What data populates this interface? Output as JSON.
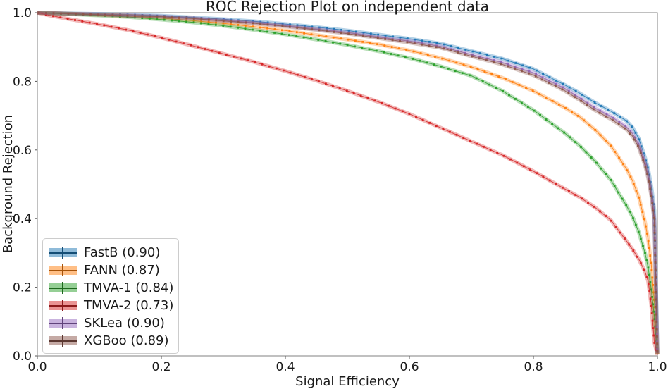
{
  "title": "ROC Rejection Plot on independent data",
  "axes": {
    "xlabel": "Signal Efficiency",
    "ylabel": "Background Rejection",
    "x_ticks": [
      "0.0",
      "0.2",
      "0.4",
      "0.6",
      "0.8",
      "1.0"
    ],
    "y_ticks": [
      "0.0",
      "0.2",
      "0.4",
      "0.6",
      "0.8",
      "1.0"
    ]
  },
  "legend": {
    "position": "lower left",
    "entries": [
      {
        "label": "FastB (0.90)",
        "color": "#1f77b4"
      },
      {
        "label": "FANN (0.87)",
        "color": "#ff7f0e"
      },
      {
        "label": "TMVA-1 (0.84)",
        "color": "#2ca02c"
      },
      {
        "label": "TMVA-2 (0.73)",
        "color": "#d62728"
      },
      {
        "label": "SKLea (0.90)",
        "color": "#9467bd"
      },
      {
        "label": "XGBoo (0.89)",
        "color": "#8c564b"
      }
    ]
  },
  "chart_data": {
    "type": "line",
    "title": "ROC Rejection Plot on independent data",
    "xlabel": "Signal Efficiency",
    "ylabel": "Background Rejection",
    "xlim": [
      0.0,
      1.0
    ],
    "ylim": [
      0.0,
      1.0
    ],
    "grid": false,
    "legend_position": "lower left",
    "style": "error-band lines with small square markers",
    "x": [
      0,
      0.02,
      0.05,
      0.1,
      0.15,
      0.2,
      0.25,
      0.3,
      0.35,
      0.4,
      0.45,
      0.5,
      0.55,
      0.6,
      0.65,
      0.7,
      0.75,
      0.8,
      0.85,
      0.875,
      0.9,
      0.925,
      0.95,
      0.96,
      0.97,
      0.98,
      0.985,
      0.99,
      0.995,
      1.0
    ],
    "series": [
      {
        "name": "FastB",
        "auc": 0.9,
        "color": "#1f77b4",
        "values": [
          1.0,
          0.999,
          0.998,
          0.996,
          0.994,
          0.991,
          0.986,
          0.981,
          0.975,
          0.967,
          0.958,
          0.948,
          0.936,
          0.924,
          0.91,
          0.888,
          0.866,
          0.836,
          0.79,
          0.765,
          0.737,
          0.713,
          0.685,
          0.665,
          0.633,
          0.578,
          0.545,
          0.495,
          0.425,
          0.01
        ]
      },
      {
        "name": "FANN",
        "auc": 0.87,
        "color": "#ff7f0e",
        "values": [
          1.0,
          0.999,
          0.997,
          0.994,
          0.99,
          0.984,
          0.977,
          0.969,
          0.959,
          0.948,
          0.935,
          0.922,
          0.908,
          0.89,
          0.868,
          0.842,
          0.81,
          0.772,
          0.724,
          0.696,
          0.658,
          0.612,
          0.545,
          0.51,
          0.462,
          0.39,
          0.34,
          0.268,
          0.158,
          0.005
        ]
      },
      {
        "name": "TMVA-1",
        "auc": 0.84,
        "color": "#2ca02c",
        "values": [
          1.0,
          0.998,
          0.996,
          0.992,
          0.987,
          0.98,
          0.972,
          0.962,
          0.95,
          0.937,
          0.922,
          0.906,
          0.888,
          0.868,
          0.844,
          0.816,
          0.772,
          0.716,
          0.65,
          0.612,
          0.566,
          0.512,
          0.438,
          0.405,
          0.36,
          0.3,
          0.258,
          0.195,
          0.115,
          0.005
        ]
      },
      {
        "name": "TMVA-2",
        "auc": 0.73,
        "color": "#d62728",
        "values": [
          1.0,
          0.992,
          0.982,
          0.966,
          0.948,
          0.927,
          0.904,
          0.88,
          0.856,
          0.83,
          0.802,
          0.772,
          0.74,
          0.705,
          0.665,
          0.625,
          0.585,
          0.538,
          0.487,
          0.462,
          0.432,
          0.395,
          0.335,
          0.31,
          0.282,
          0.245,
          0.218,
          0.15,
          0.04,
          0.003
        ]
      },
      {
        "name": "SKLea",
        "auc": 0.9,
        "color": "#9467bd",
        "values": [
          1.0,
          0.999,
          0.997,
          0.995,
          0.992,
          0.989,
          0.984,
          0.978,
          0.971,
          0.962,
          0.952,
          0.942,
          0.929,
          0.917,
          0.902,
          0.878,
          0.855,
          0.825,
          0.78,
          0.752,
          0.722,
          0.698,
          0.668,
          0.648,
          0.615,
          0.562,
          0.528,
          0.475,
          0.4,
          0.008
        ]
      },
      {
        "name": "XGBoo",
        "auc": 0.89,
        "color": "#8c564b",
        "values": [
          1.0,
          0.999,
          0.997,
          0.994,
          0.991,
          0.988,
          0.983,
          0.976,
          0.969,
          0.96,
          0.95,
          0.939,
          0.926,
          0.913,
          0.898,
          0.873,
          0.849,
          0.818,
          0.773,
          0.745,
          0.715,
          0.69,
          0.66,
          0.64,
          0.607,
          0.555,
          0.52,
          0.468,
          0.395,
          0.006
        ]
      }
    ]
  }
}
